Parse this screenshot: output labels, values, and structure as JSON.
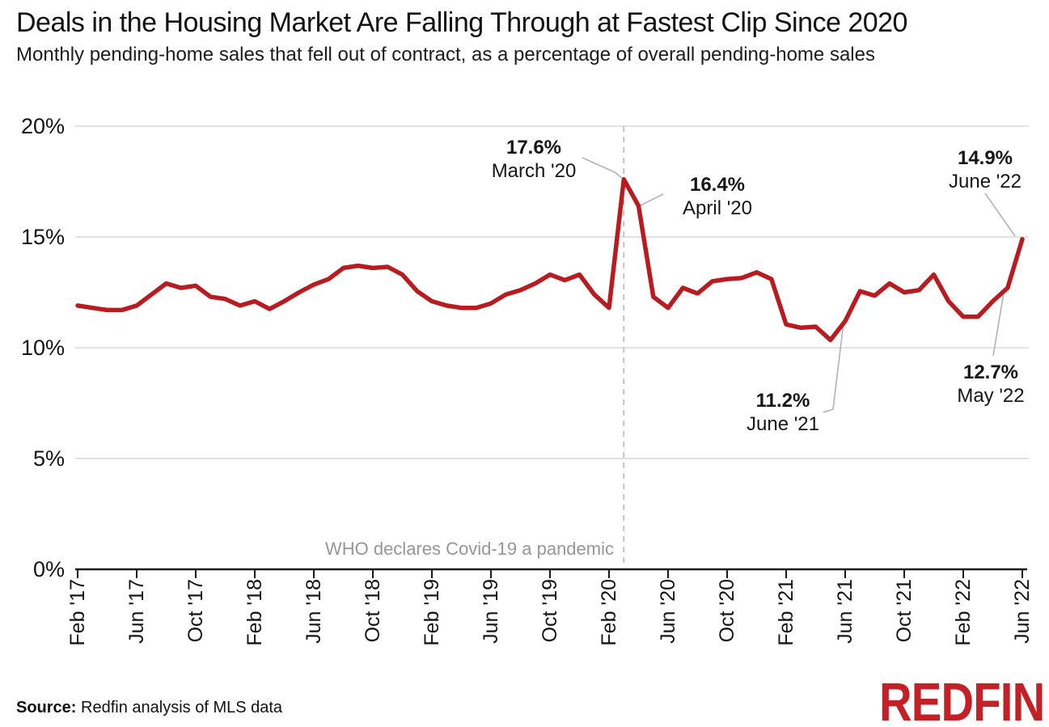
{
  "header": {
    "title": "Deals in the Housing Market Are Falling Through at Fastest Clip Since 2020",
    "subtitle": "Monthly pending-home sales that fell out of contract, as a percentage of overall pending-home sales"
  },
  "source": {
    "prefix": "Source:",
    "text": " Redfin analysis of MLS data"
  },
  "logo": {
    "text": "REDFIN",
    "color": "#c32127"
  },
  "chart_data": {
    "type": "line",
    "x": [
      "Feb '17",
      "Mar '17",
      "Apr '17",
      "May '17",
      "Jun '17",
      "Jul '17",
      "Aug '17",
      "Sep '17",
      "Oct '17",
      "Nov '17",
      "Dec '17",
      "Jan '18",
      "Feb '18",
      "Mar '18",
      "Apr '18",
      "May '18",
      "Jun '18",
      "Jul '18",
      "Aug '18",
      "Sep '18",
      "Oct '18",
      "Nov '18",
      "Dec '18",
      "Jan '19",
      "Feb '19",
      "Mar '19",
      "Apr '19",
      "May '19",
      "Jun '19",
      "Jul '19",
      "Aug '19",
      "Sep '19",
      "Oct '19",
      "Nov '19",
      "Dec '19",
      "Jan '20",
      "Feb '20",
      "Mar '20",
      "Apr '20",
      "May '20",
      "Jun '20",
      "Jul '20",
      "Aug '20",
      "Sep '20",
      "Oct '20",
      "Nov '20",
      "Dec '20",
      "Jan '21",
      "Feb '21",
      "Mar '21",
      "Apr '21",
      "May '21",
      "Jun '21",
      "Jul '21",
      "Aug '21",
      "Sep '21",
      "Oct '21",
      "Nov '21",
      "Dec '21",
      "Jan '22",
      "Feb '22",
      "Mar '22",
      "Apr '22",
      "May '22",
      "Jun '22"
    ],
    "series": [
      {
        "name": "Pending-home sales that fell out of contract (% of overall pending sales)",
        "values": [
          11.9,
          11.8,
          11.7,
          11.7,
          11.9,
          12.4,
          12.9,
          12.7,
          12.8,
          12.3,
          12.2,
          11.9,
          12.1,
          11.75,
          12.1,
          12.5,
          12.85,
          13.1,
          13.6,
          13.7,
          13.6,
          13.65,
          13.3,
          12.55,
          12.1,
          11.9,
          11.8,
          11.8,
          12.0,
          12.4,
          12.6,
          12.9,
          13.3,
          13.05,
          13.3,
          12.4,
          11.8,
          17.6,
          16.4,
          12.3,
          11.8,
          12.7,
          12.45,
          13.0,
          13.1,
          13.15,
          13.4,
          13.1,
          11.05,
          10.9,
          10.95,
          10.35,
          11.2,
          12.55,
          12.35,
          12.9,
          12.5,
          12.6,
          13.3,
          12.1,
          11.4,
          11.4,
          12.1,
          12.7,
          14.9
        ]
      }
    ],
    "ylim": [
      0,
      20
    ],
    "ytick_values": [
      0,
      5,
      10,
      15,
      20
    ],
    "ytick_labels": [
      "0%",
      "5%",
      "10%",
      "15%",
      "20%"
    ],
    "xtick_indices": [
      0,
      4,
      8,
      12,
      16,
      20,
      24,
      28,
      32,
      36,
      40,
      44,
      48,
      52,
      56,
      60,
      64
    ],
    "xtick_labels": [
      "Feb '17",
      "Jun '17",
      "Oct '17",
      "Feb '18",
      "Jun '18",
      "Oct '18",
      "Feb '19",
      "Jun '19",
      "Oct '19",
      "Feb '20",
      "Jun '20",
      "Oct '20",
      "Feb '21",
      "Jun '21",
      "Oct '21",
      "Feb '22",
      "Jun '22"
    ],
    "line_color": "#b81c20",
    "grid": true,
    "legend": "none",
    "event_line": {
      "x_index": 37,
      "text": "WHO declares Covid-19 a pandemic"
    },
    "annotations": [
      {
        "value": "17.6%",
        "label": "March '20",
        "x_index": 37,
        "y": 17.6
      },
      {
        "value": "16.4%",
        "label": "April '20",
        "x_index": 38,
        "y": 16.4
      },
      {
        "value": "11.2%",
        "label": "June '21",
        "x_index": 52,
        "y": 11.2
      },
      {
        "value": "14.9%",
        "label": "June '22",
        "x_index": 64,
        "y": 14.9
      },
      {
        "value": "12.7%",
        "label": "May '22",
        "x_index": 63,
        "y": 12.7
      }
    ]
  }
}
